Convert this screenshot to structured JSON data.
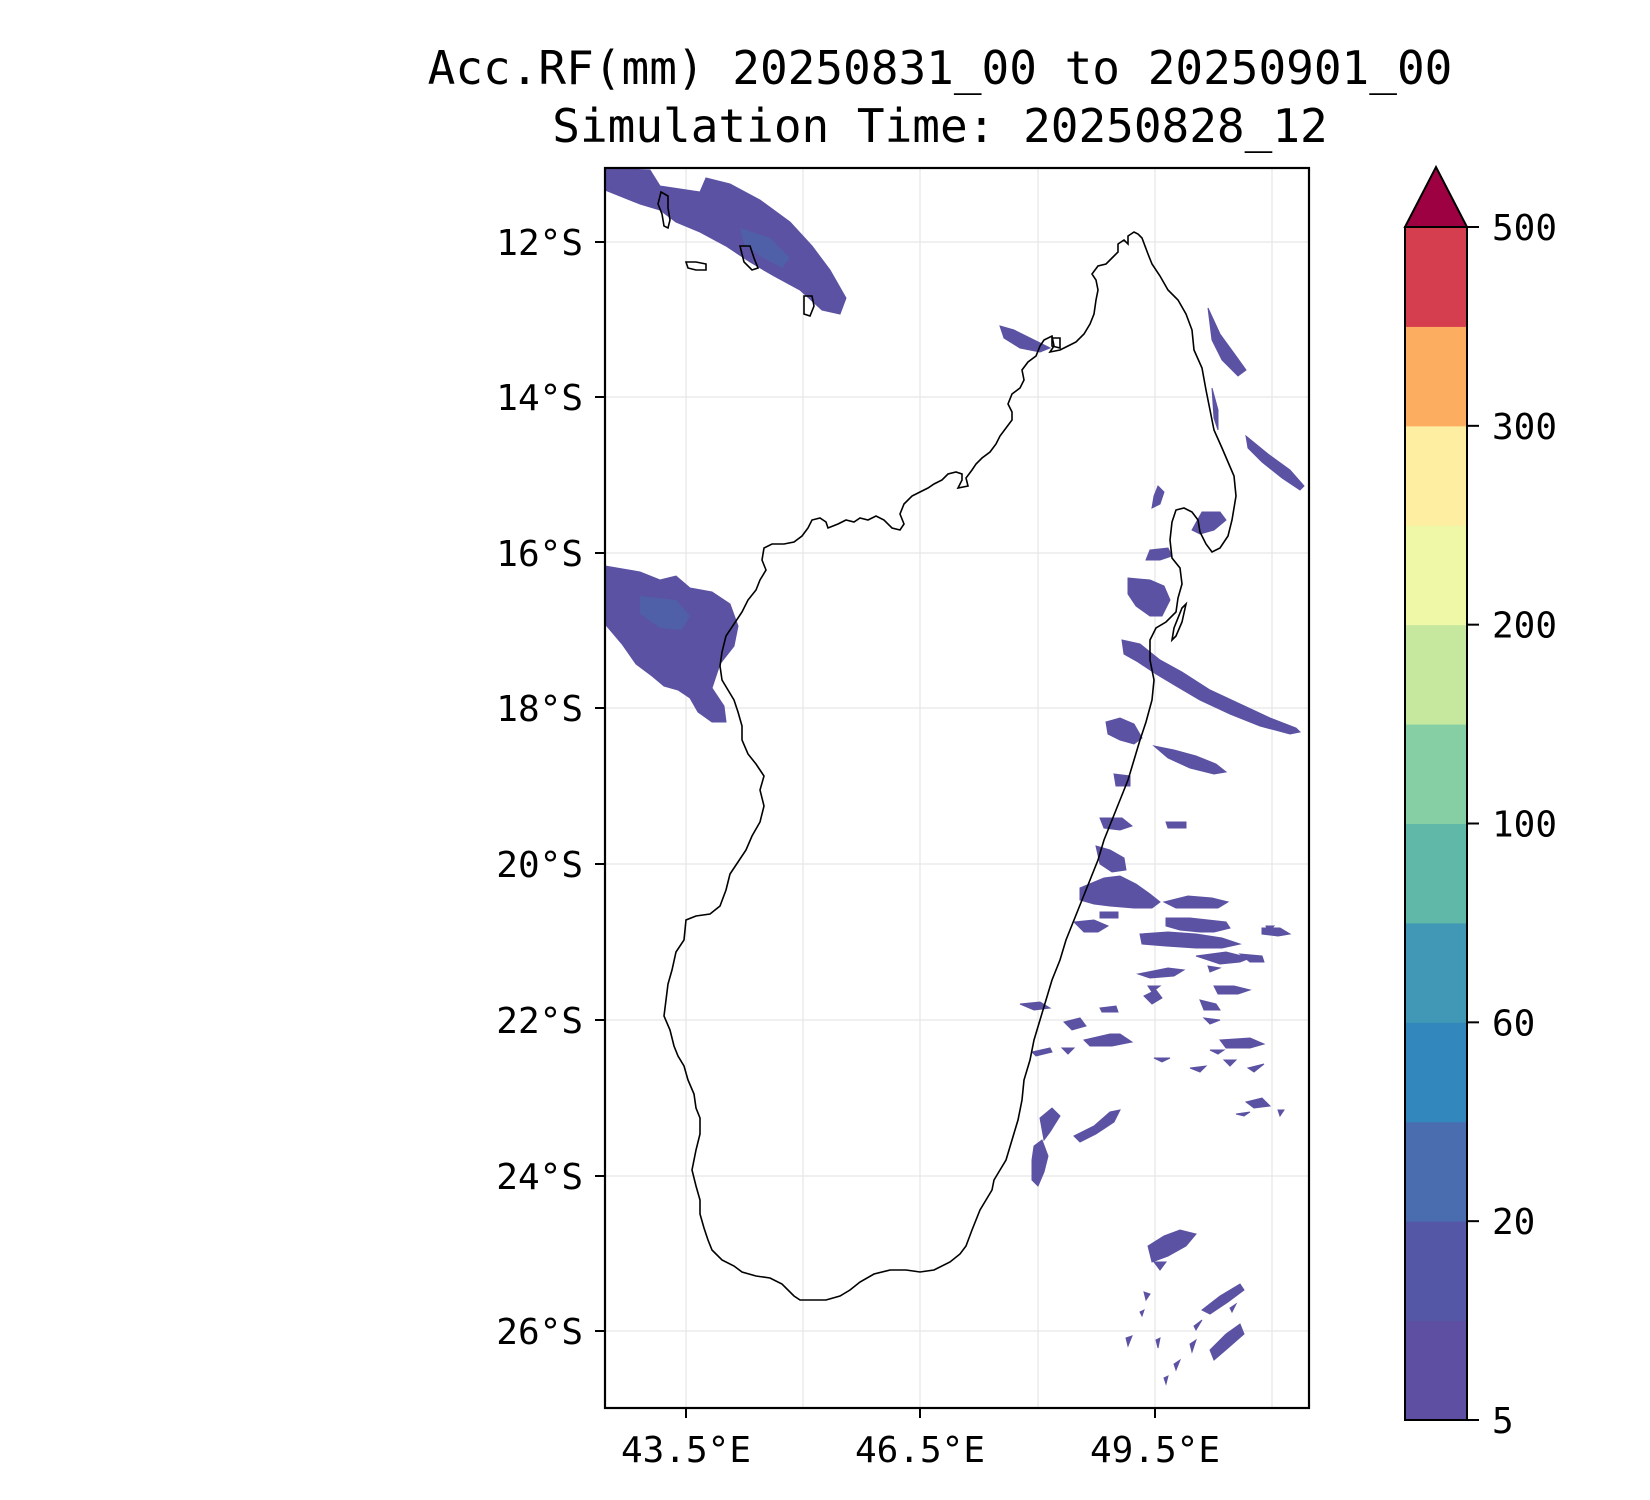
{
  "map": {
    "title_line1": "Acc.RF(mm) 20250831_00 to 20250901_00",
    "title_line2": "Simulation Time: 20250828_12",
    "lat_ticks": [
      "12°S",
      "14°S",
      "16°S",
      "18°S",
      "20°S",
      "22°S",
      "24°S",
      "26°S"
    ],
    "lon_ticks": [
      "43.5°E",
      "46.5°E",
      "49.5°E"
    ],
    "colorbar": {
      "tick_labels": [
        "5",
        "20",
        "60",
        "100",
        "200",
        "300",
        "500"
      ],
      "level_colors": [
        "#5e4fa2",
        "#5456a6",
        "#4a6db0",
        "#3288bd",
        "#4198b6",
        "#5fb8a8",
        "#86cfa5",
        "#c5e79e",
        "#eef8a7",
        "#feeea2",
        "#fdad60",
        "#d53e4f"
      ],
      "extend_color": "#9e0142"
    },
    "rain_color": "#5b52a3"
  }
}
